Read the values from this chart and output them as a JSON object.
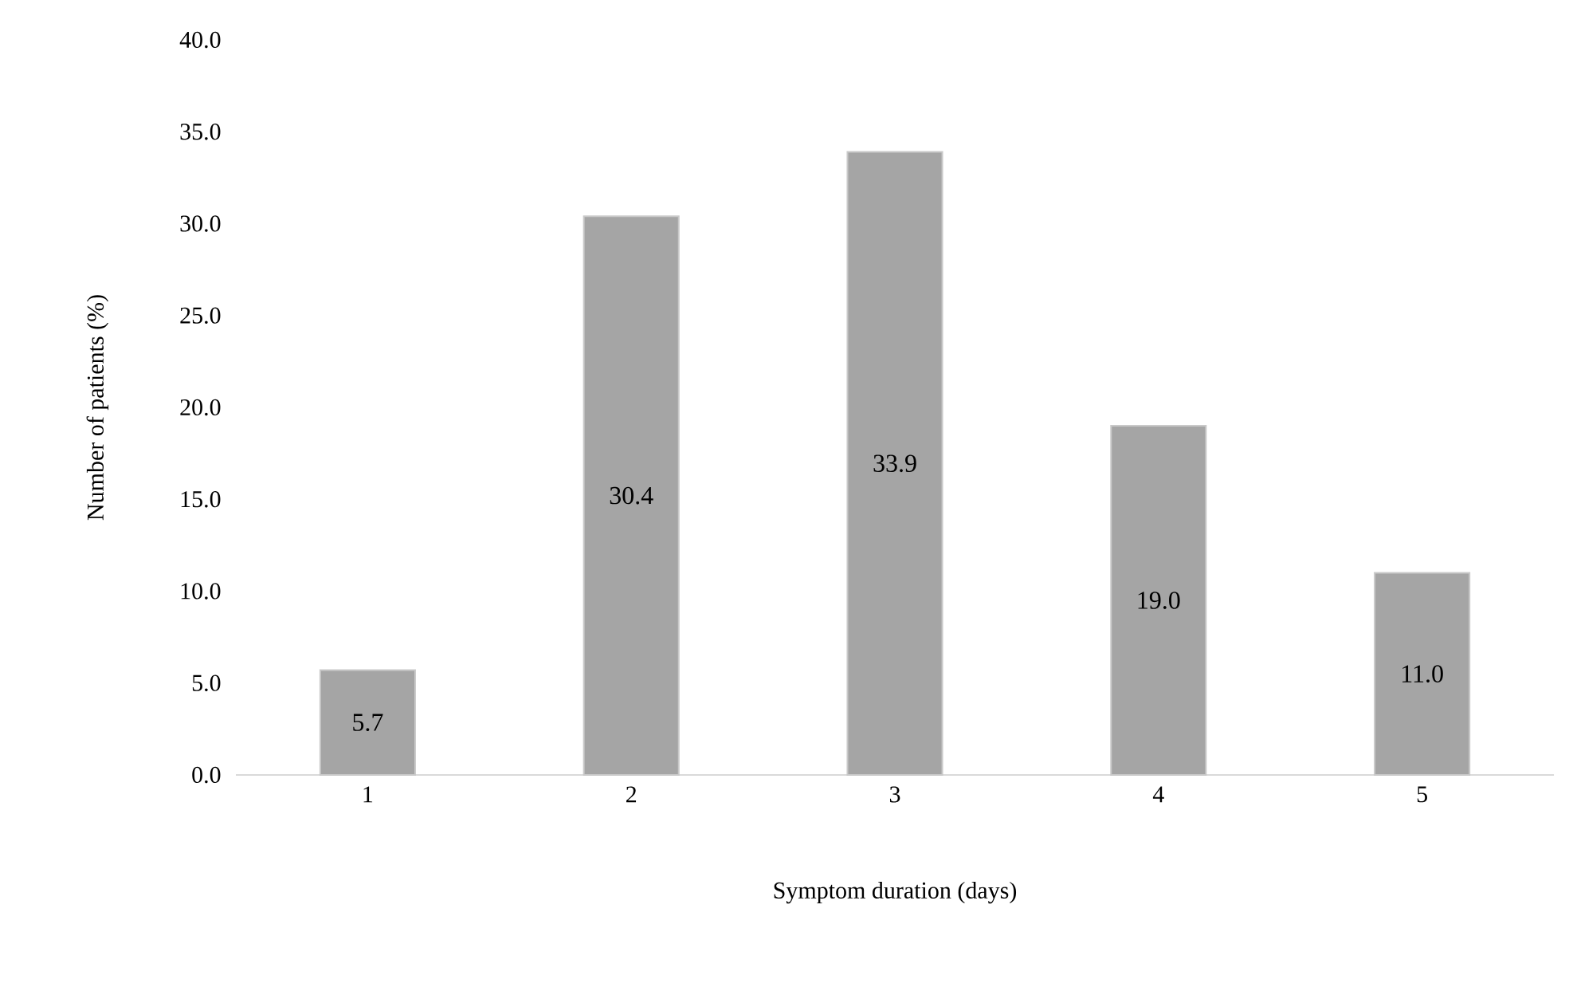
{
  "chart_data": {
    "type": "bar",
    "xlabel": "Symptom duration (days)",
    "ylabel": "Number of patients (%)",
    "categories": [
      "1",
      "2",
      "3",
      "4",
      "5"
    ],
    "values": [
      5.7,
      30.4,
      33.9,
      19.0,
      11.0
    ],
    "value_labels": [
      "5.7",
      "30.4",
      "33.9",
      "19.0",
      "11.0"
    ],
    "color": "#a5a5a5",
    "ylim": [
      0,
      40
    ],
    "yticks": [
      {
        "value": 0,
        "label": "0.0"
      },
      {
        "value": 5,
        "label": "5.0"
      },
      {
        "value": 10,
        "label": "10.0"
      },
      {
        "value": 15,
        "label": "15.0"
      },
      {
        "value": 20,
        "label": "20.0"
      },
      {
        "value": 25,
        "label": "25.0"
      },
      {
        "value": 30,
        "label": "30.0"
      },
      {
        "value": 35,
        "label": "35.0"
      },
      {
        "value": 40,
        "label": "40.0"
      }
    ]
  }
}
